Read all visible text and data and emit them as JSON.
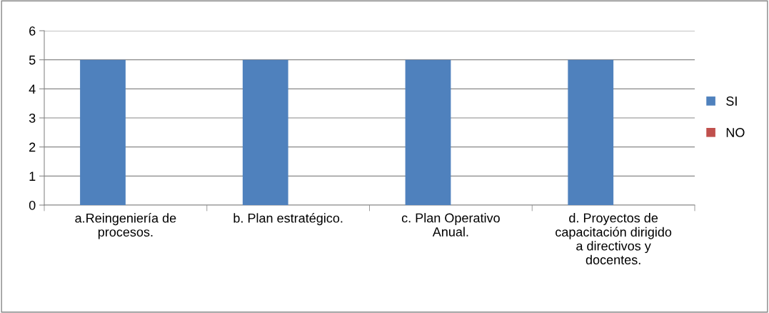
{
  "chart_data": {
    "type": "bar",
    "categories": [
      "a.Reingeniería de\nprocesos.",
      "b. Plan estratégico.",
      "c. Plan Operativo\nAnual.",
      "d. Proyectos de\ncapacitación dirigido\na directivos y\ndocentes."
    ],
    "series": [
      {
        "name": "SI",
        "color": "#4f81bd",
        "values": [
          5,
          5,
          5,
          5
        ]
      },
      {
        "name": "NO",
        "color": "#c0504d",
        "values": [
          0,
          0,
          0,
          0
        ]
      }
    ],
    "ylim": [
      0,
      6
    ],
    "yticks": [
      0,
      1,
      2,
      3,
      4,
      5,
      6
    ],
    "grid": "y",
    "legend": "right"
  }
}
